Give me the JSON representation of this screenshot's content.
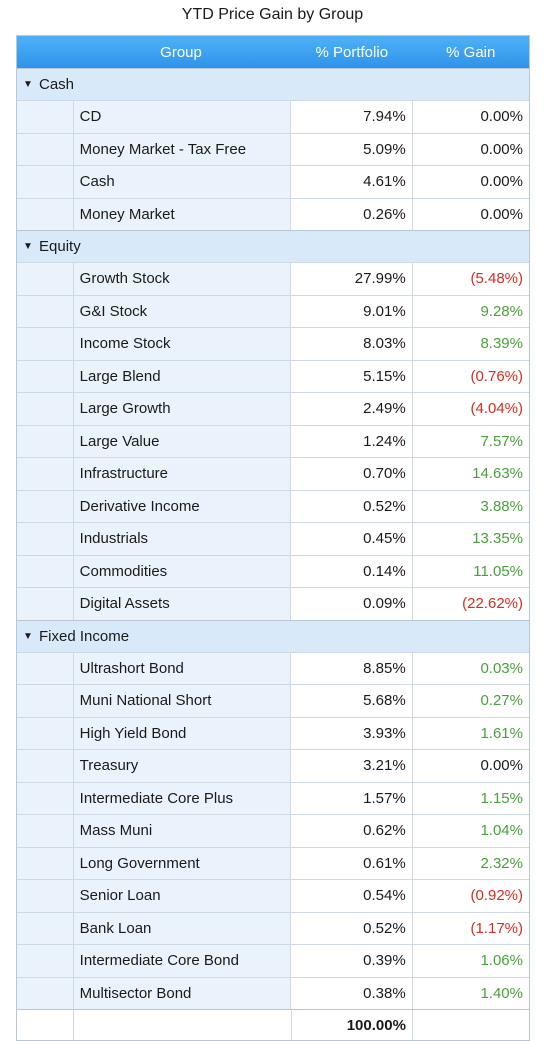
{
  "title": "YTD Price Gain by Group",
  "header": {
    "group": "Group",
    "portfolio": "% Portfolio",
    "gain": "% Gain"
  },
  "colors": {
    "header": "#3aa0f0",
    "positive": "#4aa03c",
    "negative": "#d92b20"
  },
  "chart_data": {
    "type": "table",
    "title": "YTD Price Gain by Group",
    "columns": [
      "Group",
      "% Portfolio",
      "% Gain"
    ],
    "groups": [
      {
        "name": "Cash",
        "rows": [
          {
            "name": "CD",
            "portfolio": "7.94%",
            "gain": "0.00%",
            "gain_value": 0.0
          },
          {
            "name": "Money Market - Tax Free",
            "portfolio": "5.09%",
            "gain": "0.00%",
            "gain_value": 0.0
          },
          {
            "name": "Cash",
            "portfolio": "4.61%",
            "gain": "0.00%",
            "gain_value": 0.0
          },
          {
            "name": "Money Market",
            "portfolio": "0.26%",
            "gain": "0.00%",
            "gain_value": 0.0
          }
        ]
      },
      {
        "name": "Equity",
        "rows": [
          {
            "name": "Growth Stock",
            "portfolio": "27.99%",
            "gain": "(5.48%)",
            "gain_value": -5.48
          },
          {
            "name": "G&I Stock",
            "portfolio": "9.01%",
            "gain": "9.28%",
            "gain_value": 9.28
          },
          {
            "name": "Income Stock",
            "portfolio": "8.03%",
            "gain": "8.39%",
            "gain_value": 8.39
          },
          {
            "name": "Large Blend",
            "portfolio": "5.15%",
            "gain": "(0.76%)",
            "gain_value": -0.76
          },
          {
            "name": "Large Growth",
            "portfolio": "2.49%",
            "gain": "(4.04%)",
            "gain_value": -4.04
          },
          {
            "name": "Large Value",
            "portfolio": "1.24%",
            "gain": "7.57%",
            "gain_value": 7.57
          },
          {
            "name": "Infrastructure",
            "portfolio": "0.70%",
            "gain": "14.63%",
            "gain_value": 14.63
          },
          {
            "name": "Derivative Income",
            "portfolio": "0.52%",
            "gain": "3.88%",
            "gain_value": 3.88
          },
          {
            "name": "Industrials",
            "portfolio": "0.45%",
            "gain": "13.35%",
            "gain_value": 13.35
          },
          {
            "name": "Commodities",
            "portfolio": "0.14%",
            "gain": "11.05%",
            "gain_value": 11.05
          },
          {
            "name": "Digital Assets",
            "portfolio": "0.09%",
            "gain": "(22.62%)",
            "gain_value": -22.62
          }
        ]
      },
      {
        "name": "Fixed Income",
        "rows": [
          {
            "name": "Ultrashort Bond",
            "portfolio": "8.85%",
            "gain": "0.03%",
            "gain_value": 0.03
          },
          {
            "name": "Muni National Short",
            "portfolio": "5.68%",
            "gain": "0.27%",
            "gain_value": 0.27
          },
          {
            "name": "High Yield Bond",
            "portfolio": "3.93%",
            "gain": "1.61%",
            "gain_value": 1.61
          },
          {
            "name": "Treasury",
            "portfolio": "3.21%",
            "gain": "0.00%",
            "gain_value": 0.0
          },
          {
            "name": "Intermediate Core Plus",
            "portfolio": "1.57%",
            "gain": "1.15%",
            "gain_value": 1.15
          },
          {
            "name": "Mass Muni",
            "portfolio": "0.62%",
            "gain": "1.04%",
            "gain_value": 1.04
          },
          {
            "name": "Long Government",
            "portfolio": "0.61%",
            "gain": "2.32%",
            "gain_value": 2.32
          },
          {
            "name": "Senior Loan",
            "portfolio": "0.54%",
            "gain": "(0.92%)",
            "gain_value": -0.92
          },
          {
            "name": "Bank Loan",
            "portfolio": "0.52%",
            "gain": "(1.17%)",
            "gain_value": -1.17
          },
          {
            "name": "Intermediate Core Bond",
            "portfolio": "0.39%",
            "gain": "1.06%",
            "gain_value": 1.06
          },
          {
            "name": "Multisector Bond",
            "portfolio": "0.38%",
            "gain": "1.40%",
            "gain_value": 1.4
          }
        ]
      }
    ],
    "total": {
      "portfolio": "100.00%"
    }
  }
}
